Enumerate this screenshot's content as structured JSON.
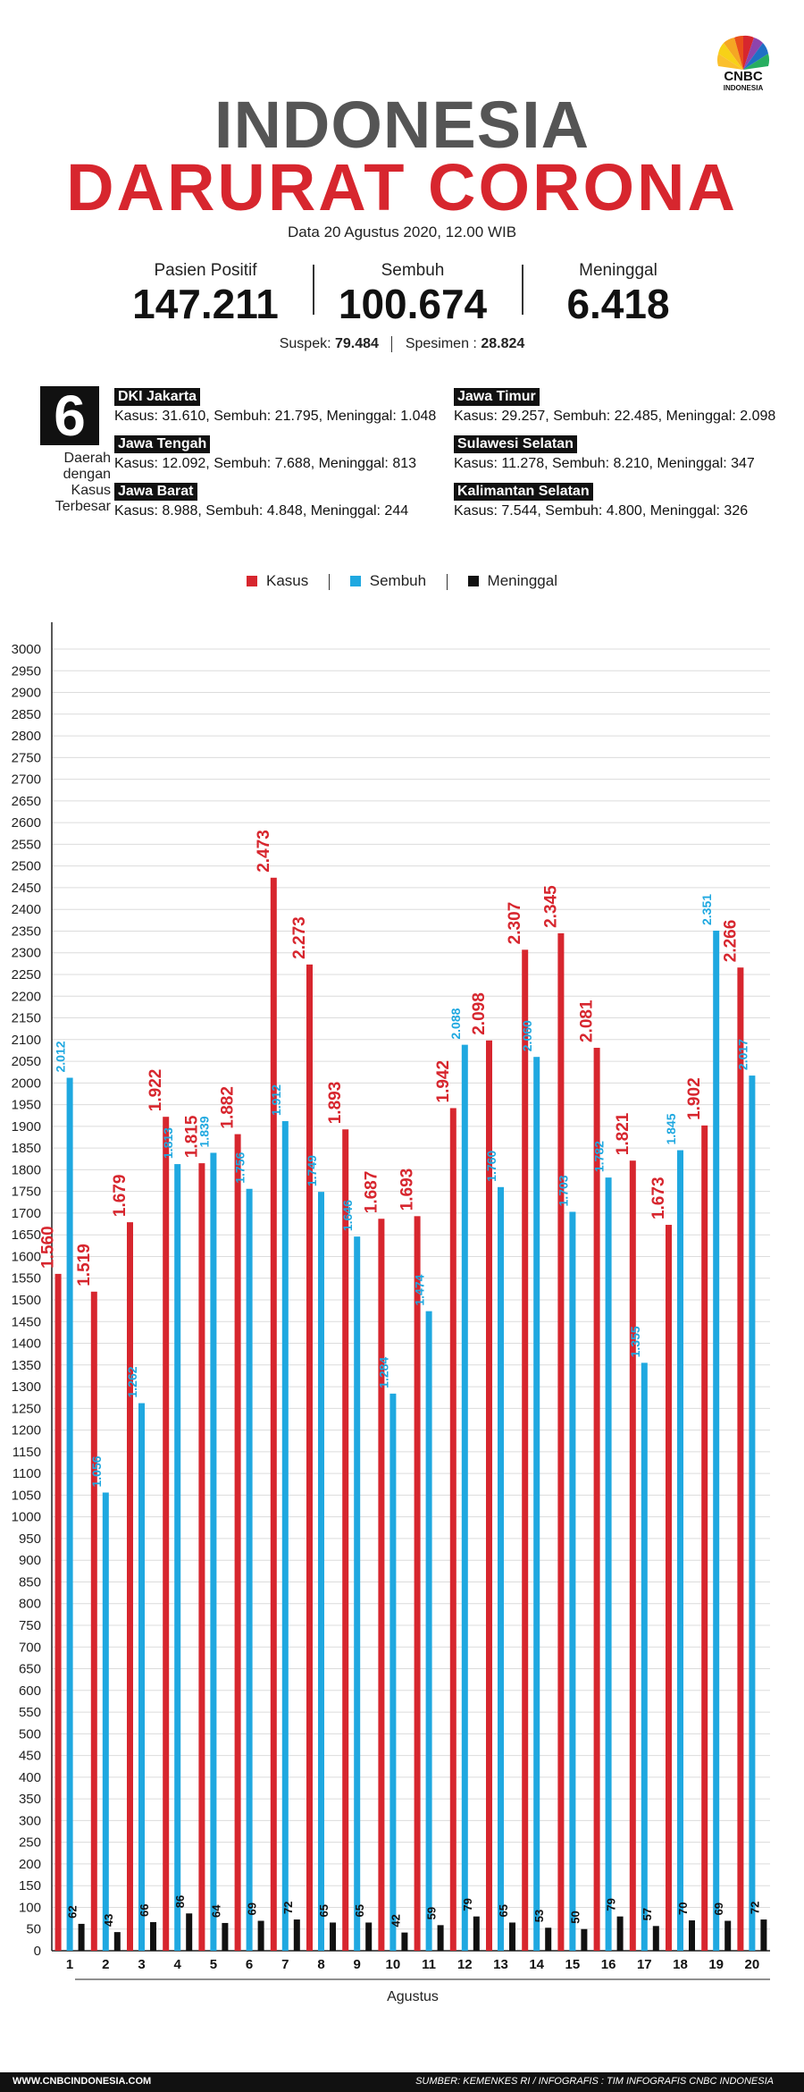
{
  "header": {
    "logo_text": "CNBC",
    "logo_sub": "INDONESIA",
    "title_line1": "INDONESIA",
    "title_line2": "DARURAT CORONA",
    "date": "Data 20 Agustus 2020, 12.00 WIB"
  },
  "stats": [
    {
      "label": "Pasien Positif",
      "value": "147.211"
    },
    {
      "label": "Sembuh",
      "value": "100.674"
    },
    {
      "label": "Meninggal",
      "value": "6.418"
    }
  ],
  "suspek": {
    "label": "Suspek:",
    "value": "79.484",
    "spesimen_label": "Spesimen :",
    "spesimen_value": "28.824"
  },
  "top_regions": {
    "count": "6",
    "label": "Daerah dengan Kasus Terbesar",
    "regions": [
      {
        "name": "DKI Jakarta",
        "line": "Kasus: 31.610, Sembuh: 21.795, Meninggal: 1.048"
      },
      {
        "name": "Jawa Tengah",
        "line": "Kasus: 12.092, Sembuh: 7.688,  Meninggal: 813"
      },
      {
        "name": "Jawa Barat",
        "line": "Kasus: 8.988, Sembuh: 4.848, Meninggal: 244"
      },
      {
        "name": "Jawa Timur",
        "line": "Kasus: 29.257, Sembuh: 22.485, Meninggal: 2.098"
      },
      {
        "name": "Sulawesi Selatan",
        "line": "Kasus: 11.278, Sembuh: 8.210, Meninggal: 347"
      },
      {
        "name": "Kalimantan Selatan",
        "line": "Kasus: 7.544, Sembuh: 4.800, Meninggal: 326"
      }
    ]
  },
  "colors": {
    "kasus": "#d7262e",
    "sembuh": "#1fa8e0",
    "meninggal": "#111111",
    "title_gray": "#555555"
  },
  "chart_data": {
    "type": "bar",
    "xlabel": "Agustus",
    "ylabel": "",
    "ylim": [
      0,
      3000
    ],
    "y_ticks": [
      0,
      50,
      100,
      150,
      200,
      250,
      300,
      350,
      400,
      450,
      500,
      550,
      600,
      650,
      700,
      750,
      800,
      850,
      900,
      950,
      1000,
      1050,
      1100,
      1150,
      1200,
      1250,
      1300,
      1350,
      1400,
      1450,
      1500,
      1550,
      1600,
      1650,
      1700,
      1750,
      1800,
      1850,
      1900,
      1950,
      2000,
      2050,
      2100,
      2150,
      2200,
      2250,
      2300,
      2350,
      2400,
      2450,
      2500,
      2550,
      2600,
      2650,
      2700,
      2750,
      2800,
      2850,
      2900,
      2950,
      3000
    ],
    "grid": true,
    "legend_position": "top-center",
    "categories": [
      "1",
      "2",
      "3",
      "4",
      "5",
      "6",
      "7",
      "8",
      "9",
      "10",
      "11",
      "12",
      "13",
      "14",
      "15",
      "16",
      "17",
      "18",
      "19",
      "20"
    ],
    "series": [
      {
        "name": "Kasus",
        "color": "#d7262e",
        "values": [
          1560,
          1519,
          1679,
          1922,
          1815,
          1882,
          2473,
          2273,
          1893,
          1687,
          1693,
          1942,
          2098,
          2307,
          2345,
          2081,
          1821,
          1673,
          1902,
          2266
        ],
        "labels": [
          "1.560",
          "1.519",
          "1.679",
          "1.922",
          "1.815",
          "1.882",
          "2.473",
          "2.273",
          "1.893",
          "1.687",
          "1.693",
          "1.942",
          "2.098",
          "2.307",
          "2.345",
          "2.081",
          "1.821",
          "1.673",
          "1.902",
          "2.266"
        ]
      },
      {
        "name": "Sembuh",
        "color": "#1fa8e0",
        "values": [
          2012,
          1056,
          1262,
          1813,
          1839,
          1756,
          1912,
          1749,
          1646,
          1284,
          1474,
          2088,
          1760,
          2060,
          1703,
          1782,
          1355,
          1845,
          2351,
          2017
        ],
        "labels": [
          "2.012",
          "1.056",
          "1.262",
          "1.813",
          "1.839",
          "1.756",
          "1.912",
          "1.749",
          "1.646",
          "1.284",
          "1.474",
          "2.088",
          "1.760",
          "2.060",
          "1.703",
          "1.782",
          "1.355",
          "1.845",
          "2.351",
          "2.017"
        ]
      },
      {
        "name": "Meninggal",
        "color": "#111111",
        "values": [
          62,
          43,
          66,
          86,
          64,
          69,
          72,
          65,
          65,
          42,
          59,
          79,
          65,
          53,
          50,
          79,
          57,
          70,
          69,
          72
        ],
        "labels": [
          "62",
          "43",
          "66",
          "86",
          "64",
          "69",
          "72",
          "65",
          "65",
          "42",
          "59",
          "79",
          "65",
          "53",
          "50",
          "79",
          "57",
          "70",
          "69",
          "72"
        ]
      }
    ]
  },
  "footer": {
    "website": "WWW.CNBCINDONESIA.COM",
    "source": "SUMBER: KEMENKES RI / INFOGRAFIS : TIM INFOGRAFIS CNBC INDONESIA"
  }
}
